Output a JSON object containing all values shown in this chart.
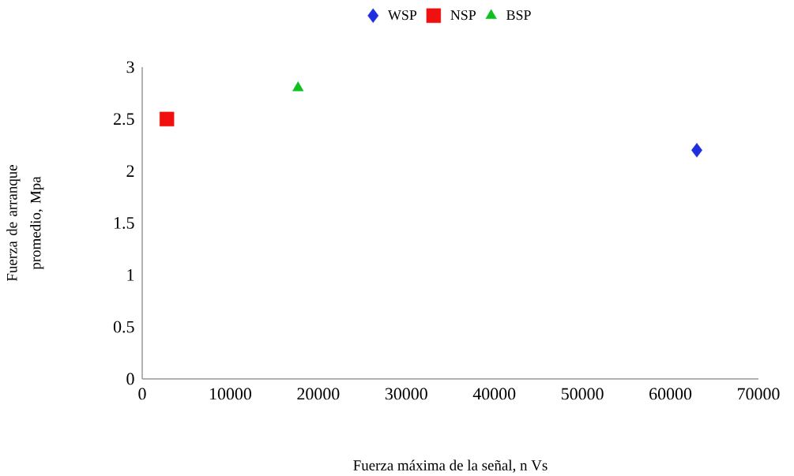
{
  "chart_data": {
    "type": "scatter",
    "xlabel": "Fuerza máxima de la señal, n Vs",
    "ylabel": "Fuerza de arranque promedio, Mpa",
    "xlim": [
      0,
      70000
    ],
    "ylim": [
      0,
      3
    ],
    "xticks": [
      0,
      10000,
      20000,
      30000,
      40000,
      50000,
      60000,
      70000
    ],
    "yticks": [
      0,
      0.5,
      1,
      1.5,
      2,
      2.5,
      3
    ],
    "grid": false,
    "legend": "top",
    "series": [
      {
        "name": "WSP",
        "color": "#1f2fe0",
        "marker": "diamond",
        "x": [
          63000
        ],
        "values": [
          2.2
        ]
      },
      {
        "name": "NSP",
        "color": "#f01010",
        "marker": "square",
        "x": [
          2800
        ],
        "values": [
          2.5
        ]
      },
      {
        "name": "BSP",
        "color": "#10c020",
        "marker": "triangle",
        "x": [
          17700
        ],
        "values": [
          2.8
        ]
      }
    ]
  }
}
